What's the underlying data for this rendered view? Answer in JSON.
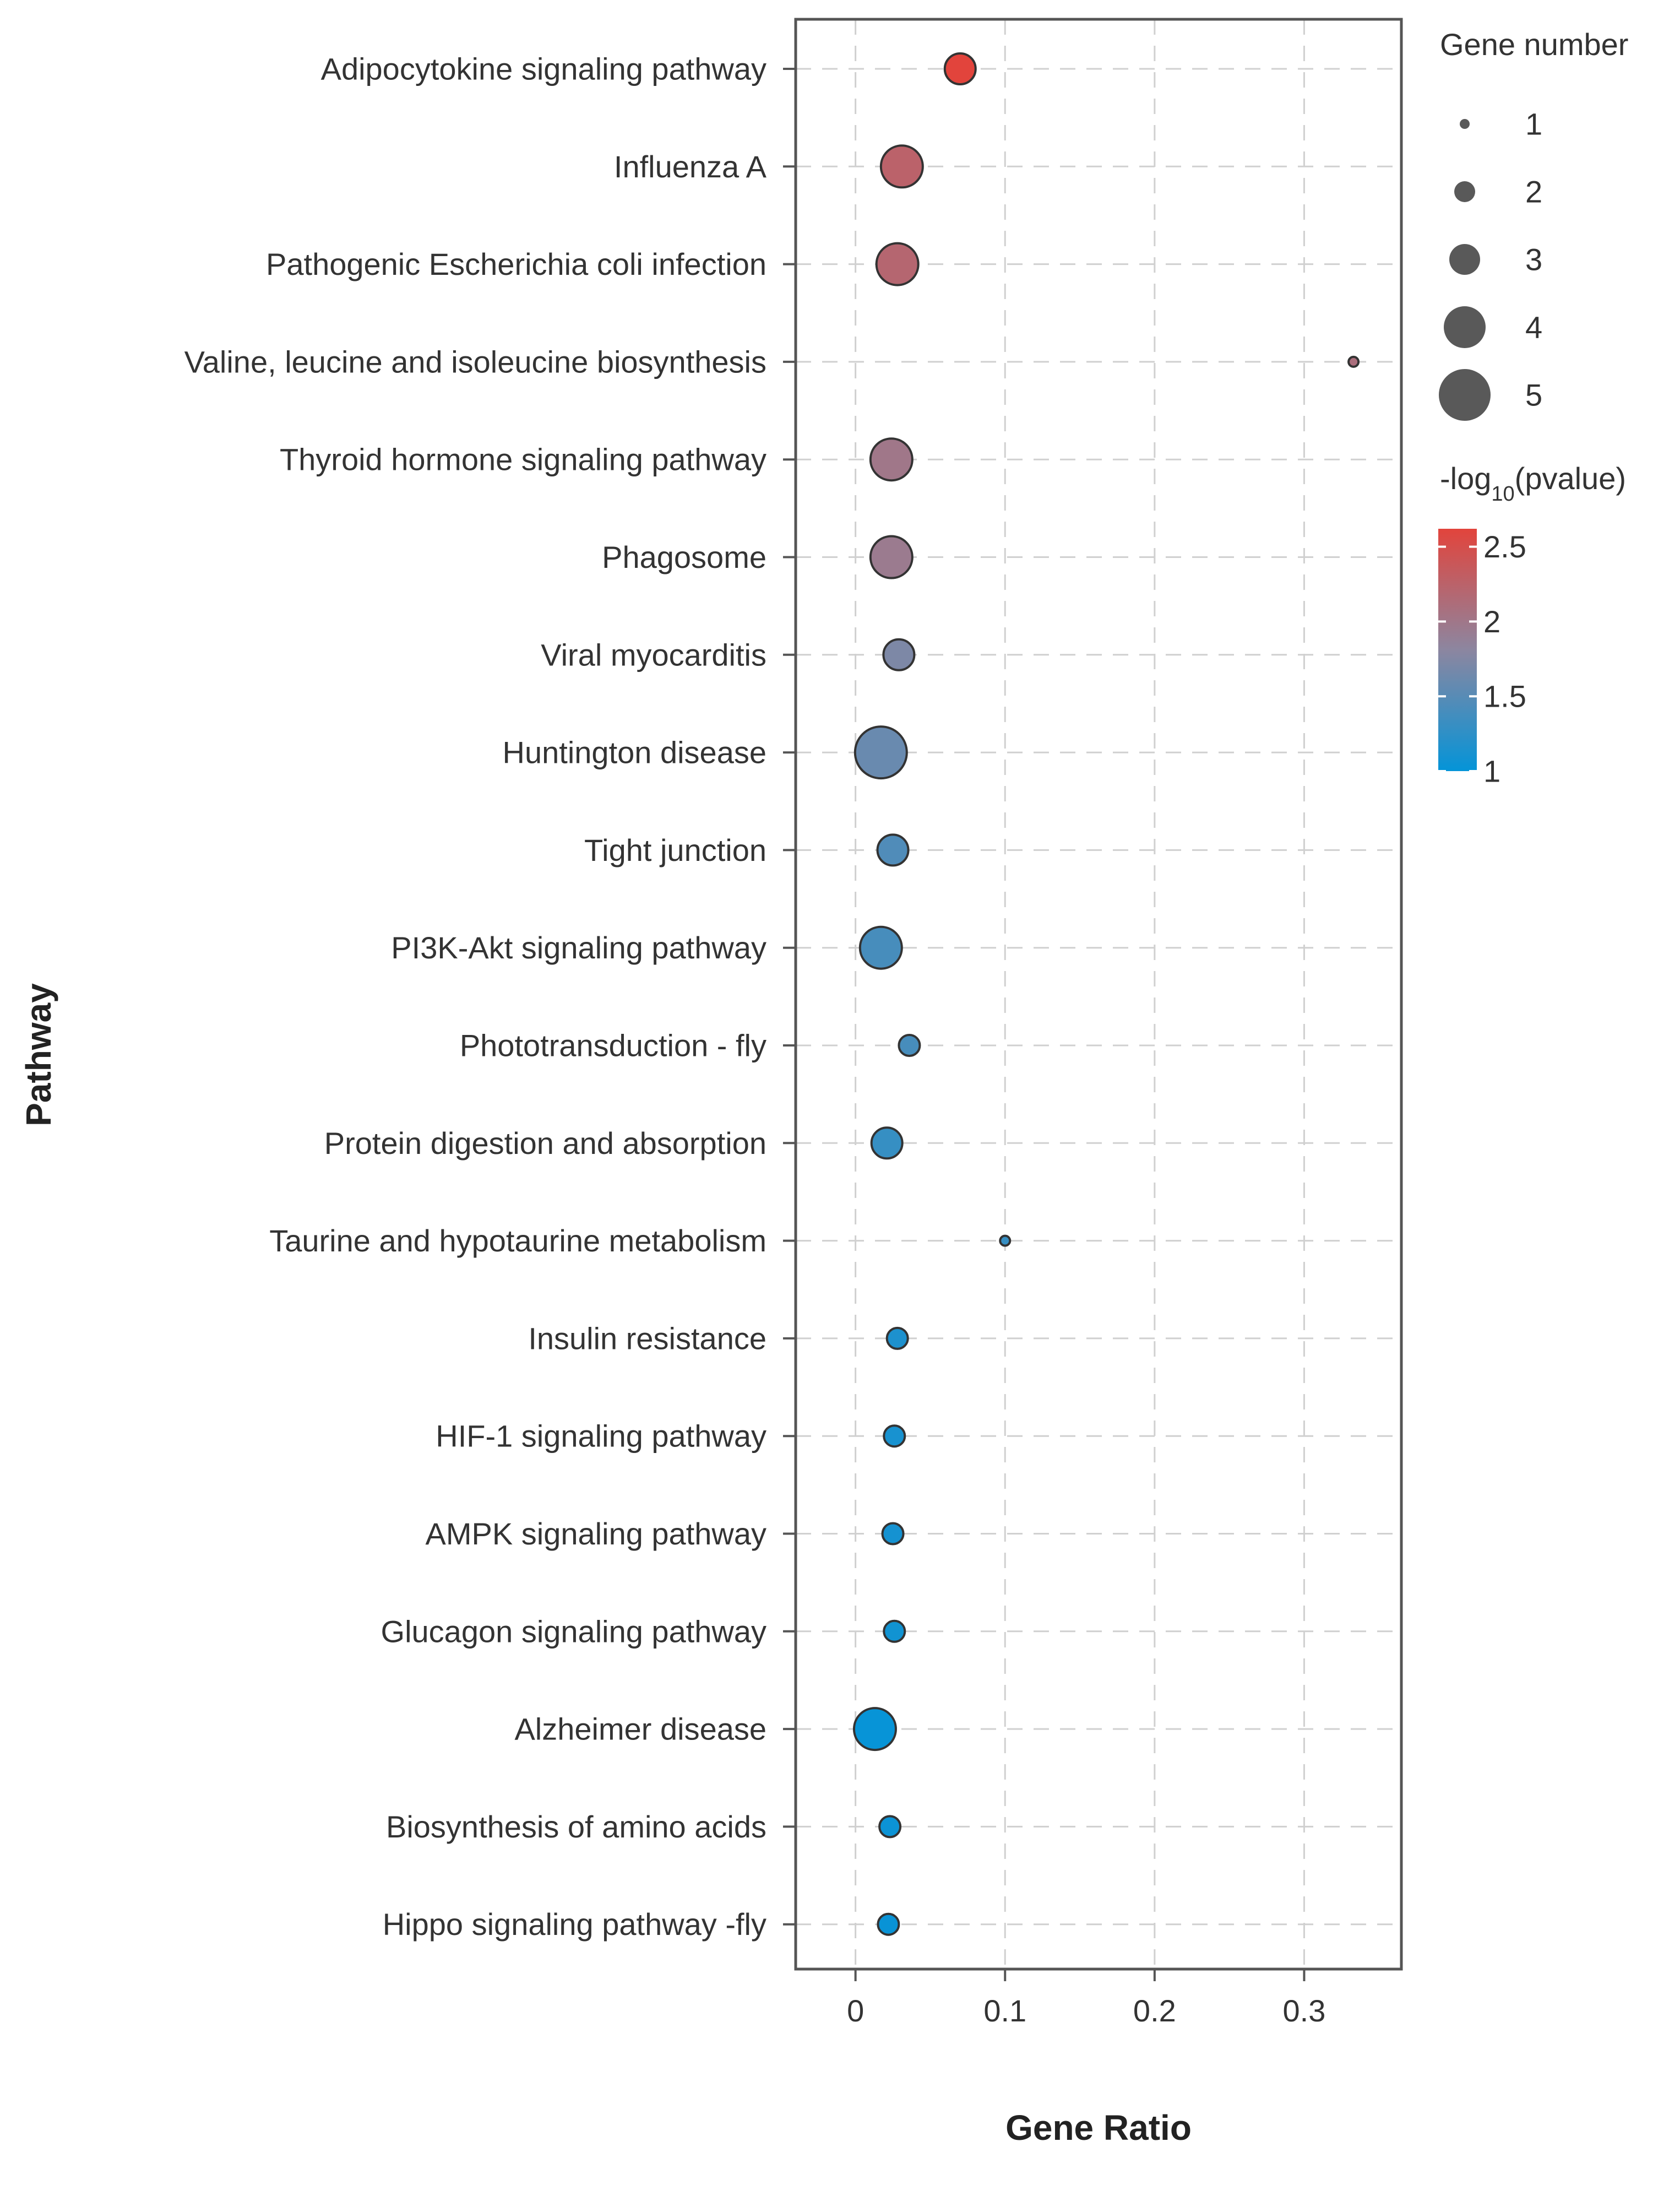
{
  "chart_data": {
    "type": "scatter",
    "title": "",
    "xlabel": "Gene Ratio",
    "ylabel": "Pathway",
    "xlim": [
      -0.04,
      0.365
    ],
    "xticks": [
      0,
      0.1,
      0.2,
      0.3
    ],
    "xtick_labels": [
      "0",
      "0.1",
      "0.2",
      "0.3"
    ],
    "grid": true,
    "points": [
      {
        "pathway": "Adipocytokine signaling pathway",
        "gene_ratio": 0.07,
        "gene_number": 3,
        "neglog10p": 2.62
      },
      {
        "pathway": "Influenza A",
        "gene_ratio": 0.031,
        "gene_number": 4,
        "neglog10p": 2.25
      },
      {
        "pathway": "Pathogenic Escherichia coli infection",
        "gene_ratio": 0.028,
        "gene_number": 4,
        "neglog10p": 2.2
      },
      {
        "pathway": "Valine, leucine and isoleucine biosynthesis",
        "gene_ratio": 0.333,
        "gene_number": 1,
        "neglog10p": 2.1
      },
      {
        "pathway": "Thyroid hormone signaling pathway",
        "gene_ratio": 0.024,
        "gene_number": 4,
        "neglog10p": 2.0
      },
      {
        "pathway": "Phagosome",
        "gene_ratio": 0.024,
        "gene_number": 4,
        "neglog10p": 1.95
      },
      {
        "pathway": "Viral myocarditis",
        "gene_ratio": 0.029,
        "gene_number": 3,
        "neglog10p": 1.72
      },
      {
        "pathway": "Huntington disease",
        "gene_ratio": 0.017,
        "gene_number": 5,
        "neglog10p": 1.6
      },
      {
        "pathway": "Tight junction",
        "gene_ratio": 0.025,
        "gene_number": 3,
        "neglog10p": 1.45
      },
      {
        "pathway": "PI3K-Akt signaling pathway",
        "gene_ratio": 0.017,
        "gene_number": 4,
        "neglog10p": 1.4
      },
      {
        "pathway": "Phototransduction - fly",
        "gene_ratio": 0.036,
        "gene_number": 2,
        "neglog10p": 1.4
      },
      {
        "pathway": "Protein digestion and absorption",
        "gene_ratio": 0.021,
        "gene_number": 3,
        "neglog10p": 1.3
      },
      {
        "pathway": "Taurine and hypotaurine metabolism",
        "gene_ratio": 0.1,
        "gene_number": 1,
        "neglog10p": 1.3
      },
      {
        "pathway": "Insulin resistance",
        "gene_ratio": 0.028,
        "gene_number": 2,
        "neglog10p": 1.15
      },
      {
        "pathway": "HIF-1 signaling pathway",
        "gene_ratio": 0.026,
        "gene_number": 2,
        "neglog10p": 1.12
      },
      {
        "pathway": "AMPK signaling pathway",
        "gene_ratio": 0.025,
        "gene_number": 2,
        "neglog10p": 1.1
      },
      {
        "pathway": "Glucagon signaling pathway",
        "gene_ratio": 0.026,
        "gene_number": 2,
        "neglog10p": 1.08
      },
      {
        "pathway": "Alzheimer disease",
        "gene_ratio": 0.013,
        "gene_number": 4,
        "neglog10p": 1.02
      },
      {
        "pathway": "Biosynthesis of amino acids",
        "gene_ratio": 0.023,
        "gene_number": 2,
        "neglog10p": 1.05
      },
      {
        "pathway": "Hippo signaling pathway -fly",
        "gene_ratio": 0.022,
        "gene_number": 2,
        "neglog10p": 1.03
      }
    ],
    "size_legend": {
      "title": "Gene number",
      "values": [
        1,
        2,
        3,
        4,
        5
      ],
      "labels": [
        "1",
        "2",
        "3",
        "4",
        "5"
      ]
    },
    "color_legend": {
      "title_prefix": "-log",
      "title_sub": "10",
      "title_suffix": "(pvalue)",
      "range": [
        1,
        2.62
      ],
      "ticks": [
        1,
        1.5,
        2,
        2.5
      ],
      "tick_labels": [
        "1",
        "1.5",
        "2",
        "2.5"
      ],
      "low_color": "#0494d8",
      "mid_color": "#8c86a0",
      "high_color": "#e2443c"
    }
  }
}
